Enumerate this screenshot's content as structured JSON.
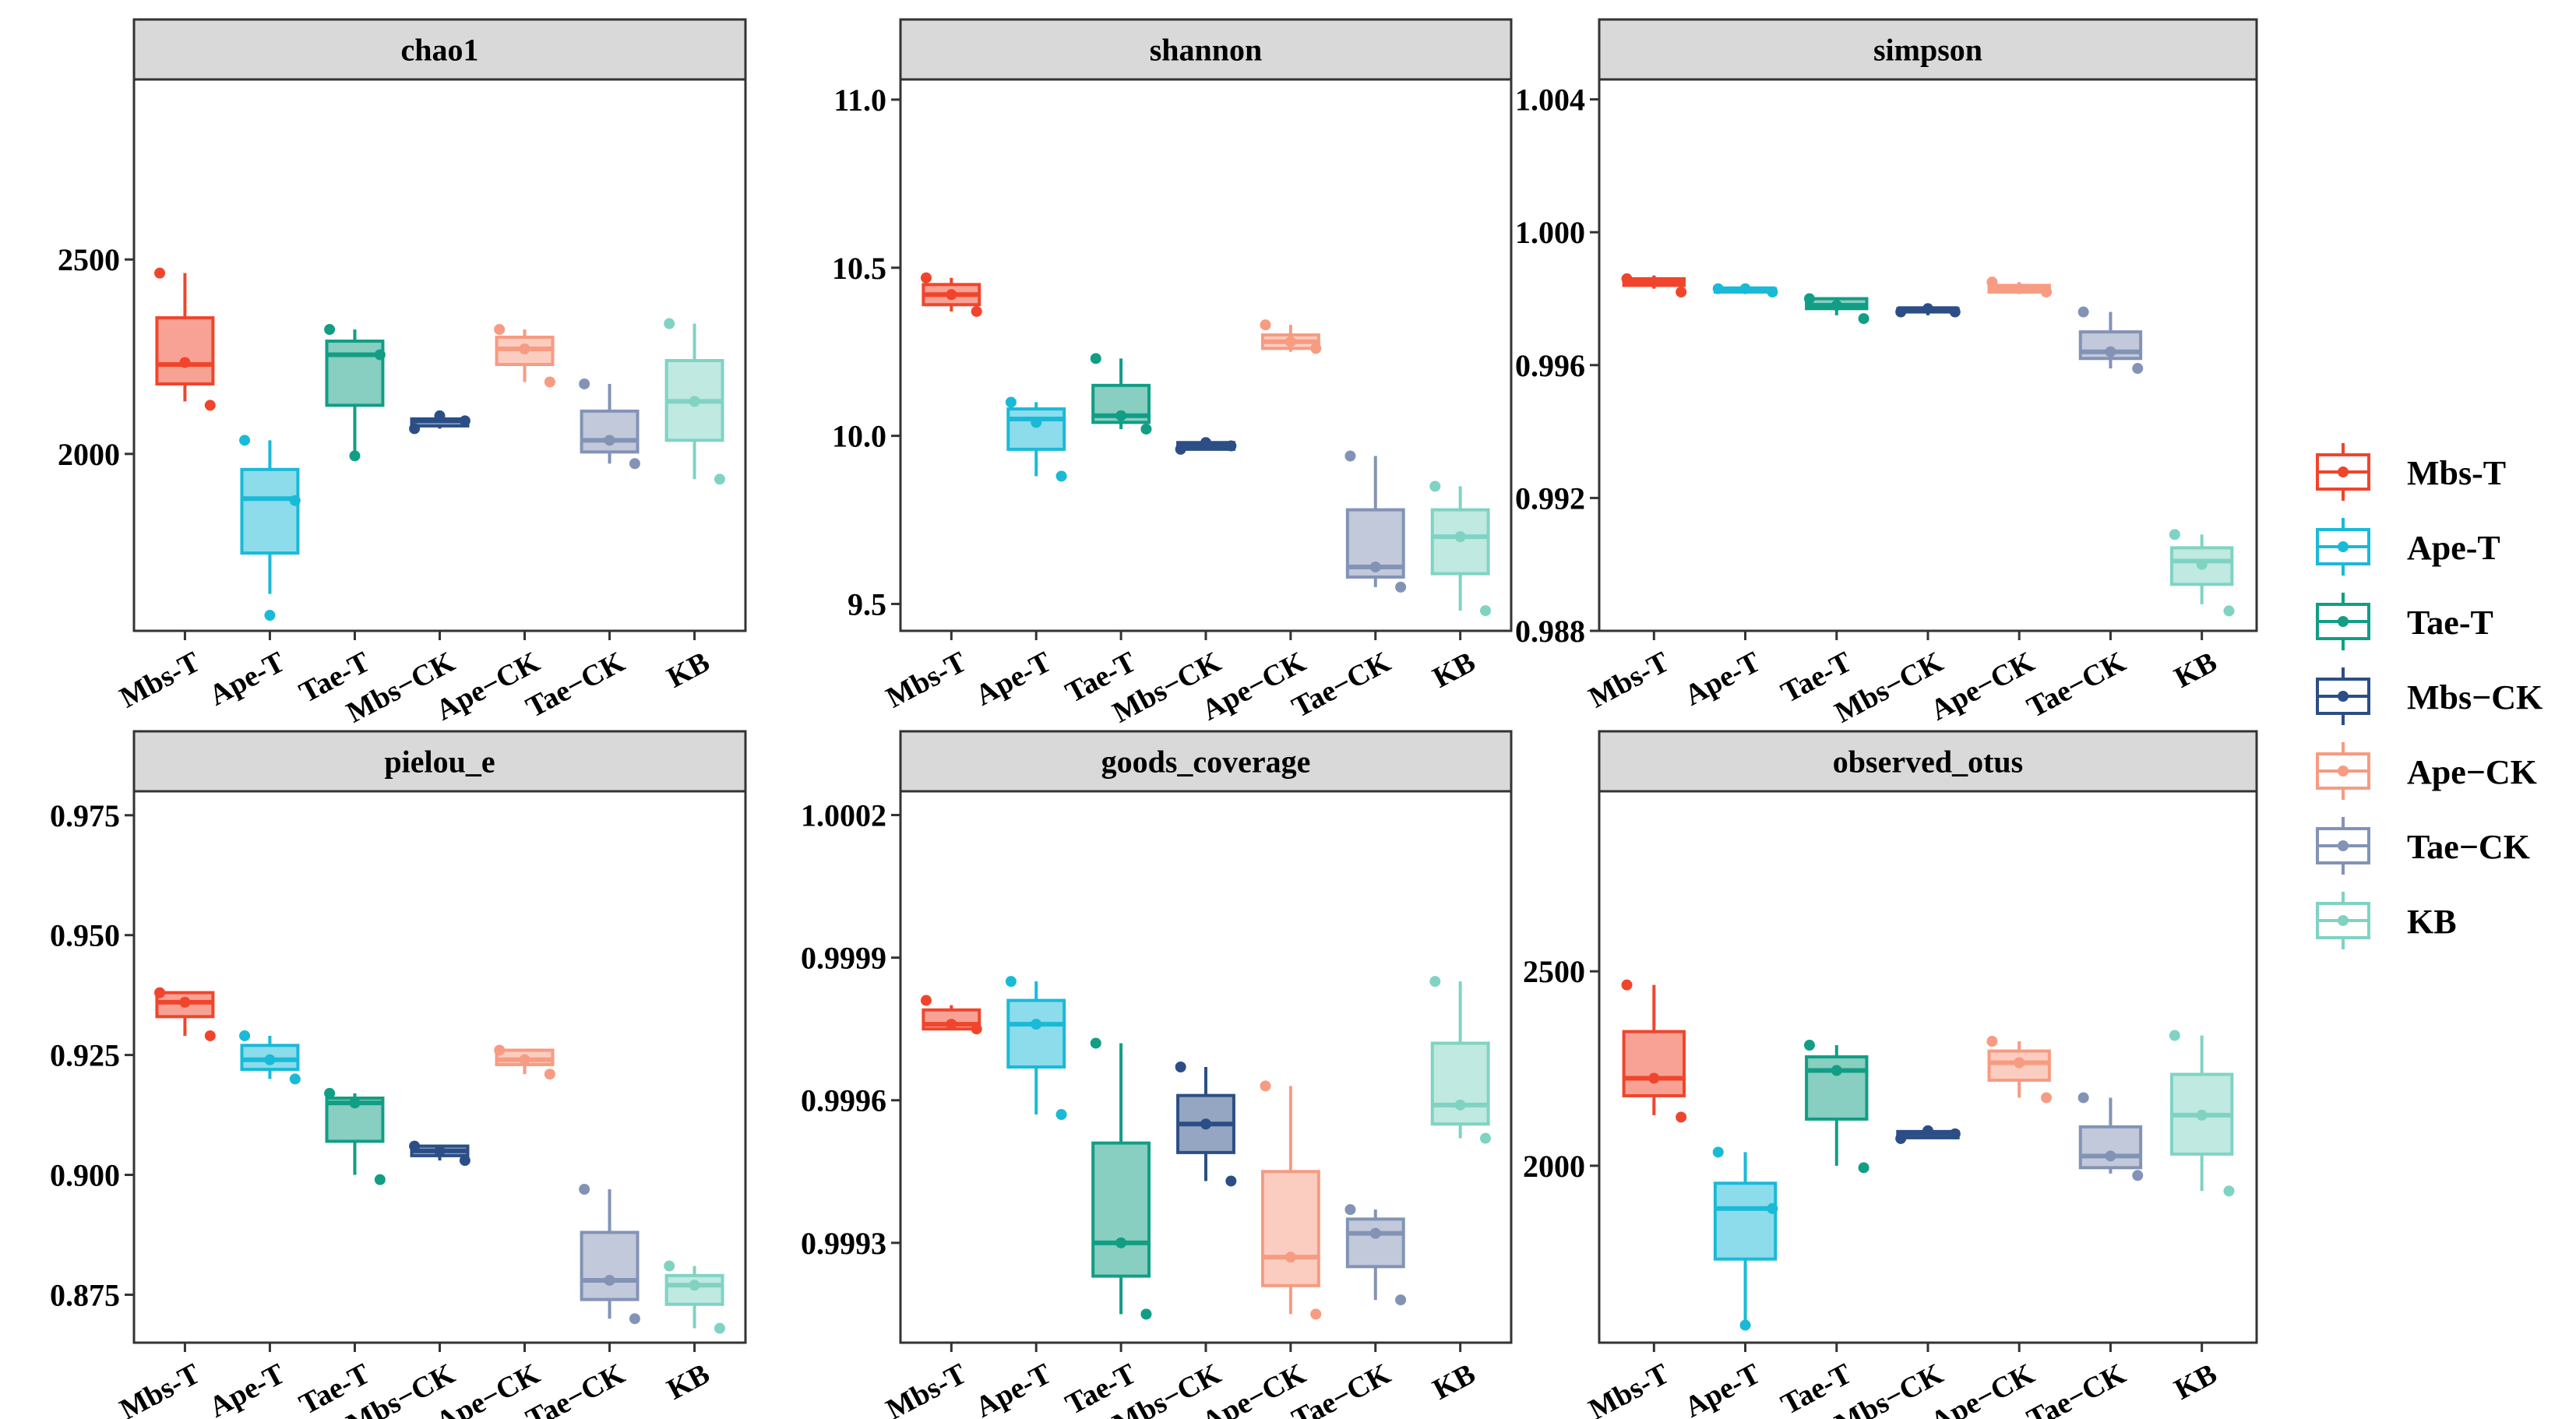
{
  "chart_data": [
    {
      "type": "box",
      "title": "chao1",
      "categories": [
        "Mbs-T",
        "Ape-T",
        "Tae-T",
        "Mbs−CK",
        "Ape−CK",
        "Tae−CK",
        "KB"
      ],
      "ylim": [
        1545,
        2963
      ],
      "yticks": [
        2000,
        2500
      ],
      "ytick_labels": [
        "2000",
        "2500"
      ],
      "boxes": [
        {
          "min": 2135,
          "q1": 2180,
          "median": 2230,
          "q3": 2350,
          "max": 2465,
          "points": [
            2465,
            2125,
            2235
          ]
        },
        {
          "min": 1640,
          "q1": 1745,
          "median": 1885,
          "q3": 1960,
          "max": 2035,
          "points": [
            2035,
            1880,
            1585
          ]
        },
        {
          "min": 1995,
          "q1": 2125,
          "median": 2255,
          "q3": 2290,
          "max": 2320,
          "points": [
            2320,
            2255,
            1995
          ]
        },
        {
          "min": 2065,
          "q1": 2072,
          "median": 2085,
          "q3": 2090,
          "max": 2100,
          "points": [
            2065,
            2085,
            2098
          ]
        },
        {
          "min": 2185,
          "q1": 2230,
          "median": 2270,
          "q3": 2300,
          "max": 2320,
          "points": [
            2320,
            2185,
            2270
          ]
        },
        {
          "min": 1975,
          "q1": 2005,
          "median": 2035,
          "q3": 2110,
          "max": 2180,
          "points": [
            2180,
            1975,
            2035
          ]
        },
        {
          "min": 1935,
          "q1": 2035,
          "median": 2135,
          "q3": 2240,
          "max": 2335,
          "points": [
            2335,
            1935,
            2135
          ]
        }
      ]
    },
    {
      "type": "box",
      "title": "shannon",
      "categories": [
        "Mbs-T",
        "Ape-T",
        "Tae-T",
        "Mbs−CK",
        "Ape−CK",
        "Tae−CK",
        "KB"
      ],
      "ylim": [
        9.42,
        11.06
      ],
      "yticks": [
        9.5,
        10.0,
        10.5,
        11.0
      ],
      "ytick_labels": [
        "9.5",
        "10.0",
        "10.5",
        "11.0"
      ],
      "boxes": [
        {
          "min": 10.37,
          "q1": 10.39,
          "median": 10.42,
          "q3": 10.45,
          "max": 10.47,
          "points": [
            10.47,
            10.37,
            10.42
          ]
        },
        {
          "min": 9.88,
          "q1": 9.96,
          "median": 10.05,
          "q3": 10.08,
          "max": 10.1,
          "points": [
            10.1,
            9.88,
            10.04
          ]
        },
        {
          "min": 10.02,
          "q1": 10.04,
          "median": 10.06,
          "q3": 10.15,
          "max": 10.23,
          "points": [
            10.23,
            10.02,
            10.06
          ]
        },
        {
          "min": 9.96,
          "q1": 9.96,
          "median": 9.97,
          "q3": 9.98,
          "max": 9.98,
          "points": [
            9.96,
            9.97,
            9.98
          ]
        },
        {
          "min": 10.25,
          "q1": 10.26,
          "median": 10.28,
          "q3": 10.3,
          "max": 10.33,
          "points": [
            10.33,
            10.26,
            10.28
          ]
        },
        {
          "min": 9.55,
          "q1": 9.58,
          "median": 9.61,
          "q3": 9.78,
          "max": 9.94,
          "points": [
            9.94,
            9.55,
            9.61
          ]
        },
        {
          "min": 9.48,
          "q1": 9.59,
          "median": 9.7,
          "q3": 9.78,
          "max": 9.85,
          "points": [
            9.85,
            9.48,
            9.7
          ]
        }
      ]
    },
    {
      "type": "box",
      "title": "simpson",
      "categories": [
        "Mbs-T",
        "Ape-T",
        "Tae-T",
        "Mbs−CK",
        "Ape−CK",
        "Tae−CK",
        "KB"
      ],
      "ylim": [
        0.988,
        1.0046
      ],
      "yticks": [
        0.988,
        0.992,
        0.996,
        1.0,
        1.004
      ],
      "ytick_labels": [
        "0.988",
        "0.992",
        "0.996",
        "1.000",
        "1.004"
      ],
      "boxes": [
        {
          "min": 0.9983,
          "q1": 0.9984,
          "median": 0.9985,
          "q3": 0.9986,
          "max": 0.9987,
          "points": [
            0.9986,
            0.9982,
            0.9985
          ]
        },
        {
          "min": 0.9982,
          "q1": 0.9982,
          "median": 0.9983,
          "q3": 0.9983,
          "max": 0.9983,
          "points": [
            0.9983,
            0.9982,
            0.9983
          ]
        },
        {
          "min": 0.9975,
          "q1": 0.9977,
          "median": 0.9978,
          "q3": 0.998,
          "max": 0.998,
          "points": [
            0.998,
            0.9974,
            0.9978
          ]
        },
        {
          "min": 0.9975,
          "q1": 0.9976,
          "median": 0.9977,
          "q3": 0.9977,
          "max": 0.9977,
          "points": [
            0.9976,
            0.9976,
            0.9977
          ]
        },
        {
          "min": 0.9982,
          "q1": 0.9982,
          "median": 0.9983,
          "q3": 0.9984,
          "max": 0.9985,
          "points": [
            0.9985,
            0.9982,
            0.9983
          ]
        },
        {
          "min": 0.9959,
          "q1": 0.9962,
          "median": 0.9964,
          "q3": 0.997,
          "max": 0.9976,
          "points": [
            0.9976,
            0.9959,
            0.9964
          ]
        },
        {
          "min": 0.9888,
          "q1": 0.9894,
          "median": 0.9901,
          "q3": 0.9905,
          "max": 0.9909,
          "points": [
            0.9909,
            0.9886,
            0.99
          ]
        }
      ]
    },
    {
      "type": "box",
      "title": "pielou_e",
      "categories": [
        "Mbs-T",
        "Ape-T",
        "Tae-T",
        "Mbs−CK",
        "Ape−CK",
        "Tae−CK",
        "KB"
      ],
      "ylim": [
        0.865,
        0.98
      ],
      "yticks": [
        0.875,
        0.9,
        0.925,
        0.95,
        0.975
      ],
      "ytick_labels": [
        "0.875",
        "0.900",
        "0.925",
        "0.950",
        "0.975"
      ],
      "boxes": [
        {
          "min": 0.929,
          "q1": 0.933,
          "median": 0.936,
          "q3": 0.938,
          "max": 0.938,
          "points": [
            0.938,
            0.929,
            0.936
          ]
        },
        {
          "min": 0.92,
          "q1": 0.922,
          "median": 0.924,
          "q3": 0.927,
          "max": 0.929,
          "points": [
            0.929,
            0.92,
            0.924
          ]
        },
        {
          "min": 0.9,
          "q1": 0.907,
          "median": 0.915,
          "q3": 0.916,
          "max": 0.917,
          "points": [
            0.917,
            0.899,
            0.915
          ]
        },
        {
          "min": 0.903,
          "q1": 0.904,
          "median": 0.905,
          "q3": 0.906,
          "max": 0.906,
          "points": [
            0.906,
            0.903,
            0.905
          ]
        },
        {
          "min": 0.921,
          "q1": 0.923,
          "median": 0.924,
          "q3": 0.926,
          "max": 0.926,
          "points": [
            0.926,
            0.921,
            0.924
          ]
        },
        {
          "min": 0.87,
          "q1": 0.874,
          "median": 0.878,
          "q3": 0.888,
          "max": 0.897,
          "points": [
            0.897,
            0.87,
            0.878
          ]
        },
        {
          "min": 0.868,
          "q1": 0.873,
          "median": 0.877,
          "q3": 0.879,
          "max": 0.881,
          "points": [
            0.881,
            0.868,
            0.877
          ]
        }
      ]
    },
    {
      "type": "box",
      "title": "goods_coverage",
      "categories": [
        "Mbs-T",
        "Ape-T",
        "Tae-T",
        "Mbs−CK",
        "Ape−CK",
        "Tae−CK",
        "KB"
      ],
      "ylim": [
        0.99909,
        1.00025
      ],
      "yticks": [
        0.9993,
        0.9996,
        0.9999,
        1.0002
      ],
      "ytick_labels": [
        "0.9993",
        "0.9996",
        "0.9999",
        "1.0002"
      ],
      "boxes": [
        {
          "min": 0.99975,
          "q1": 0.99975,
          "median": 0.99976,
          "q3": 0.99979,
          "max": 0.9998,
          "points": [
            0.99981,
            0.99975,
            0.99976
          ]
        },
        {
          "min": 0.99957,
          "q1": 0.99967,
          "median": 0.99976,
          "q3": 0.99981,
          "max": 0.99985,
          "points": [
            0.99985,
            0.99957,
            0.99976
          ]
        },
        {
          "min": 0.99915,
          "q1": 0.99923,
          "median": 0.9993,
          "q3": 0.99951,
          "max": 0.99972,
          "points": [
            0.99972,
            0.99915,
            0.9993
          ]
        },
        {
          "min": 0.99943,
          "q1": 0.99949,
          "median": 0.99955,
          "q3": 0.99961,
          "max": 0.99967,
          "points": [
            0.99967,
            0.99943,
            0.99955
          ]
        },
        {
          "min": 0.99915,
          "q1": 0.99921,
          "median": 0.99927,
          "q3": 0.99945,
          "max": 0.99963,
          "points": [
            0.99963,
            0.99915,
            0.99927
          ]
        },
        {
          "min": 0.99918,
          "q1": 0.99925,
          "median": 0.99932,
          "q3": 0.99935,
          "max": 0.99937,
          "points": [
            0.99937,
            0.99918,
            0.99932
          ]
        },
        {
          "min": 0.99952,
          "q1": 0.99955,
          "median": 0.99959,
          "q3": 0.99972,
          "max": 0.99985,
          "points": [
            0.99985,
            0.99952,
            0.99959
          ]
        }
      ]
    },
    {
      "type": "box",
      "title": "observed_otus",
      "categories": [
        "Mbs-T",
        "Ape-T",
        "Tae-T",
        "Mbs−CK",
        "Ape−CK",
        "Tae−CK",
        "KB"
      ],
      "ylim": [
        1545,
        2963
      ],
      "yticks": [
        2000,
        2500
      ],
      "ytick_labels": [
        "2000",
        "2500"
      ],
      "boxes": [
        {
          "min": 2130,
          "q1": 2180,
          "median": 2225,
          "q3": 2345,
          "max": 2465,
          "points": [
            2465,
            2125,
            2225
          ]
        },
        {
          "min": 1600,
          "q1": 1760,
          "median": 1890,
          "q3": 1955,
          "max": 2035,
          "points": [
            2035,
            1890,
            1590
          ]
        },
        {
          "min": 2000,
          "q1": 2120,
          "median": 2245,
          "q3": 2280,
          "max": 2310,
          "points": [
            2310,
            1995,
            2245
          ]
        },
        {
          "min": 2070,
          "q1": 2072,
          "median": 2082,
          "q3": 2088,
          "max": 2090,
          "points": [
            2070,
            2082,
            2090
          ]
        },
        {
          "min": 2175,
          "q1": 2220,
          "median": 2265,
          "q3": 2295,
          "max": 2320,
          "points": [
            2320,
            2175,
            2265
          ]
        },
        {
          "min": 1980,
          "q1": 1995,
          "median": 2025,
          "q3": 2100,
          "max": 2175,
          "points": [
            2175,
            1975,
            2025
          ]
        },
        {
          "min": 1935,
          "q1": 2030,
          "median": 2130,
          "q3": 2235,
          "max": 2335,
          "points": [
            2335,
            1935,
            2130
          ]
        }
      ]
    }
  ],
  "legend": {
    "position": "right",
    "items": [
      {
        "label": "Mbs-T",
        "color": "#F0452C"
      },
      {
        "label": "Ape-T",
        "color": "#19BAD7"
      },
      {
        "label": "Tae-T",
        "color": "#119E84"
      },
      {
        "label": "Mbs−CK",
        "color": "#2C4E86"
      },
      {
        "label": "Ape−CK",
        "color": "#F79B82"
      },
      {
        "label": "Tae−CK",
        "color": "#8393B6"
      },
      {
        "label": "KB",
        "color": "#80D3C3"
      }
    ]
  }
}
